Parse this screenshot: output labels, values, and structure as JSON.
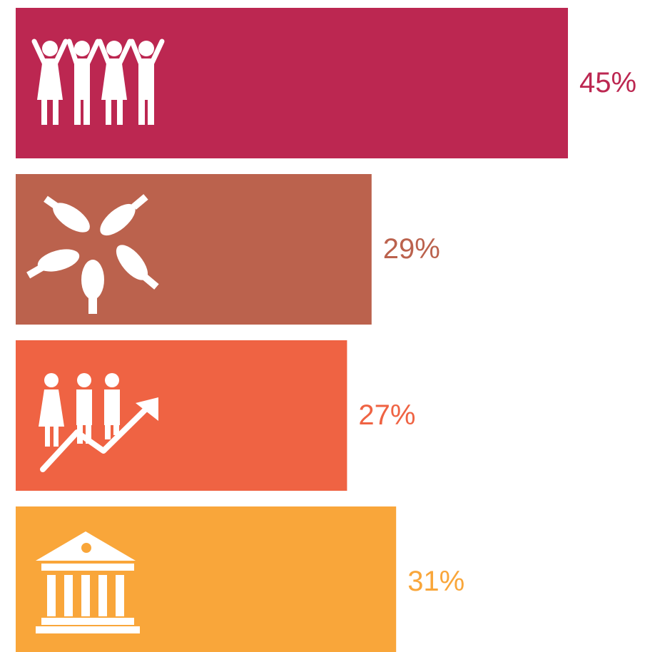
{
  "chart_data": {
    "type": "bar",
    "values": [
      45,
      29,
      27,
      31
    ],
    "value_labels": [
      "45%",
      "29%",
      "27%",
      "31%"
    ],
    "colors": [
      "#bc2751",
      "#bb624d",
      "#ef6343",
      "#f9a63a"
    ]
  }
}
